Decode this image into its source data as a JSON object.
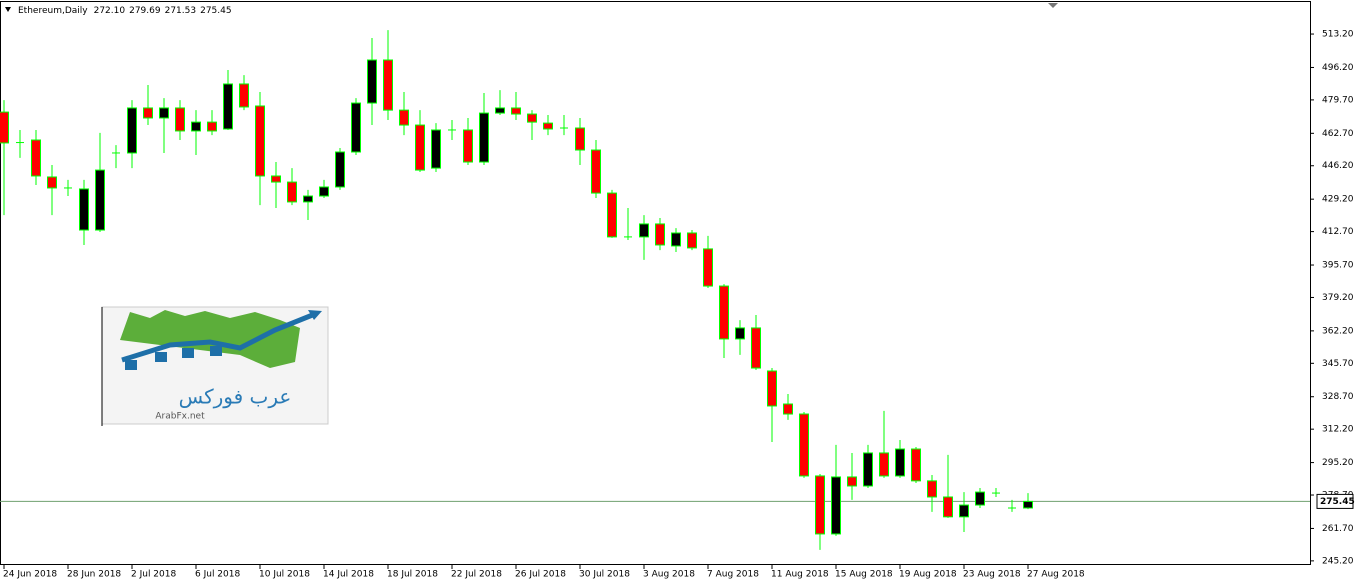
{
  "header": {
    "symbol": "Ethereum,Daily",
    "values": [
      "272.10",
      "279.69",
      "271.53",
      "275.45"
    ]
  },
  "logo": {
    "arabic": "عرب فوركس",
    "latin": "ArabFx.net"
  },
  "chart_data": {
    "type": "candlestick",
    "categories": [
      "24 Jun 2018",
      null,
      null,
      null,
      "28 Jun 2018",
      null,
      null,
      null,
      "2 Jul 2018",
      null,
      null,
      null,
      "6 Jul 2018",
      null,
      null,
      null,
      "10 Jul 2018",
      null,
      null,
      null,
      "14 Jul 2018",
      null,
      null,
      null,
      "18 Jul 2018",
      null,
      null,
      null,
      "22 Jul 2018",
      null,
      null,
      null,
      "26 Jul 2018",
      null,
      null,
      null,
      "30 Jul 2018",
      null,
      null,
      null,
      "3 Aug 2018",
      null,
      null,
      null,
      "7 Aug 2018",
      null,
      null,
      null,
      "11 Aug 2018",
      null,
      null,
      null,
      "15 Aug 2018",
      null,
      null,
      null,
      "19 Aug 2018",
      null,
      null,
      null,
      "23 Aug 2018",
      null,
      null,
      null,
      "27 Aug 2018"
    ],
    "open": [
      473.5,
      458,
      459.3,
      440.5,
      434.9,
      413.5,
      413.5,
      452.7,
      452.7,
      475.6,
      470.5,
      475.6,
      463.9,
      468.4,
      464.9,
      487.8,
      476.6,
      441.0,
      437.9,
      427.8,
      430.8,
      435.4,
      453.2,
      478.1,
      500.0,
      474.5,
      466.9,
      445.0,
      464.4,
      464.4,
      448.1,
      473.0,
      475.6,
      472.5,
      467.9,
      465.4,
      465.4,
      454.2,
      432.3,
      410.0,
      410.0,
      416.6,
      405.4,
      412.0,
      403.9,
      385.0,
      358.1,
      363.7,
      341.8,
      325.0,
      319.9,
      288.4,
      258.9,
      287.9,
      283.3,
      300.1,
      288.4,
      302.1,
      285.9,
      277.7,
      267.6,
      273.6,
      279.7,
      272.1,
      272.1
    ],
    "high": [
      479.6,
      464.4,
      464.4,
      446.6,
      439.0,
      439.0,
      462.9,
      456.7,
      479.6,
      487.3,
      480.6,
      479.6,
      474.5,
      474.5,
      494.9,
      492.3,
      483.7,
      448.1,
      445.0,
      433.9,
      439.0,
      455.2,
      480.6,
      511.2,
      515.2,
      483.7,
      474.5,
      467.9,
      469.5,
      470.5,
      483.2,
      484.7,
      483.7,
      474.5,
      472.0,
      472.0,
      470.5,
      459.3,
      433.9,
      424.7,
      421.1,
      419.6,
      414.5,
      413.5,
      410.5,
      386.0,
      367.7,
      370.3,
      343.3,
      330.1,
      320.9,
      289.4,
      304.2,
      300.1,
      304.2,
      321.5,
      306.7,
      303.1,
      288.9,
      299.1,
      280.2,
      282.3,
      282.3,
      276.2,
      279.69
    ],
    "low": [
      421.1,
      450.2,
      436.4,
      421.1,
      430.8,
      405.9,
      412.5,
      445.0,
      445.0,
      466.9,
      452.7,
      459.3,
      451.7,
      461.8,
      464.4,
      474.5,
      426.2,
      424.7,
      426.2,
      418.6,
      429.8,
      433.9,
      451.7,
      466.9,
      469.5,
      461.8,
      443.0,
      443.0,
      459.3,
      446.6,
      446.6,
      472.0,
      469.5,
      459.3,
      461.8,
      461.8,
      446.6,
      429.8,
      409.5,
      408.4,
      398.3,
      403.3,
      402.3,
      403.3,
      384.0,
      348.4,
      350.0,
      342.3,
      305.7,
      316.9,
      287.4,
      250.8,
      257.9,
      276.2,
      282.3,
      287.4,
      287.4,
      284.8,
      270.1,
      267.1,
      259.9,
      272.1,
      277.7,
      270.1,
      271.53
    ],
    "close": [
      457.8,
      458,
      441.0,
      434.9,
      434.9,
      434.4,
      444.0,
      452.7,
      475.6,
      470.5,
      475.6,
      463.9,
      468.4,
      463.9,
      487.8,
      476.1,
      441.0,
      437.9,
      427.8,
      430.8,
      435.4,
      453.2,
      478.1,
      500.0,
      474.5,
      466.9,
      444.0,
      464.4,
      464.4,
      448.1,
      473.0,
      475.6,
      472.5,
      468.4,
      464.9,
      465.4,
      454.2,
      432.3,
      410.0,
      410.0,
      416.6,
      405.9,
      412.0,
      404.4,
      385.0,
      358.1,
      363.7,
      343.3,
      324.0,
      319.9,
      288.4,
      258.9,
      287.9,
      283.3,
      300.1,
      288.4,
      302.1,
      285.9,
      277.7,
      267.6,
      273.6,
      280.2,
      279.7,
      272.1,
      275.45
    ],
    "up_color": "#000000",
    "down_color": "#ff0000",
    "wick_color": "#00ff00",
    "last_price": {
      "value": 275.45,
      "label": "275.45"
    },
    "last_price_color": "#6fa06f",
    "ylim": [
      243.1,
      529.5
    ],
    "yticks": [
      {
        "value": 513.2,
        "label": "513.20"
      },
      {
        "value": 496.2,
        "label": "496.20"
      },
      {
        "value": 479.7,
        "label": "479.70"
      },
      {
        "value": 462.7,
        "label": "462.70"
      },
      {
        "value": 446.2,
        "label": "446.20"
      },
      {
        "value": 429.2,
        "label": "429.20"
      },
      {
        "value": 412.7,
        "label": "412.70"
      },
      {
        "value": 395.7,
        "label": "395.70"
      },
      {
        "value": 379.2,
        "label": "379.20"
      },
      {
        "value": 362.2,
        "label": "362.20"
      },
      {
        "value": 345.7,
        "label": "345.70"
      },
      {
        "value": 328.7,
        "label": "328.70"
      },
      {
        "value": 312.2,
        "label": "312.20"
      },
      {
        "value": 295.2,
        "label": "295.20"
      },
      {
        "value": 278.7,
        "label": "278.70"
      },
      {
        "value": 261.7,
        "label": "261.70"
      },
      {
        "value": 245.2,
        "label": "245.20"
      }
    ],
    "grid": false
  }
}
